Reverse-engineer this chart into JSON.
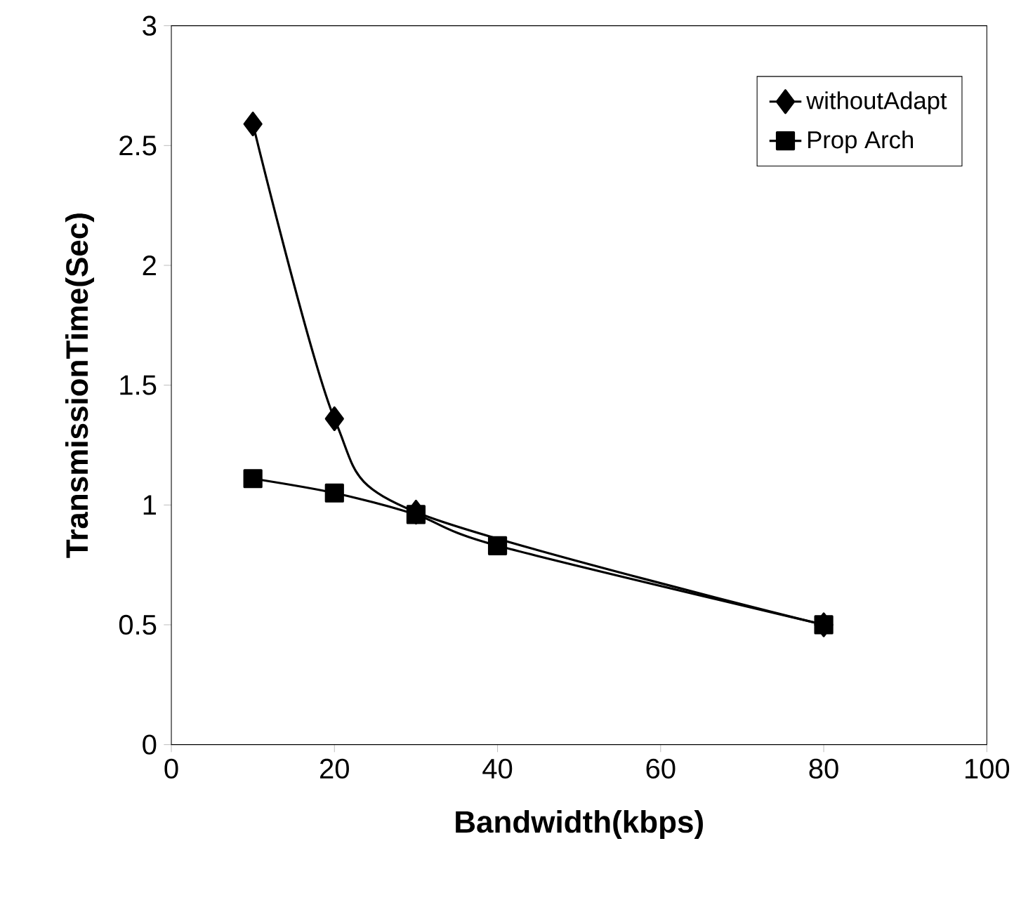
{
  "chart_data": {
    "type": "line",
    "xlabel": "Bandwidth(kbps)",
    "ylabel": "TransmissionTime(Sec)",
    "xlim": [
      0,
      100
    ],
    "xticks": [
      0,
      20,
      40,
      60,
      80,
      100
    ],
    "ylim": [
      0,
      3
    ],
    "yticks": [
      0,
      0.5,
      1,
      1.5,
      2,
      2.5,
      3
    ],
    "grid": false,
    "legend": "top right",
    "series": [
      {
        "name": "withoutAdapt",
        "color": "#000000",
        "marker": "diamond",
        "x": [
          10,
          20,
          30,
          40,
          80
        ],
        "values": [
          2.59,
          1.36,
          0.97,
          null,
          0.5
        ]
      },
      {
        "name": "Prop Arch",
        "color": "#000000",
        "marker": "square",
        "x": [
          10,
          20,
          30,
          40,
          80
        ],
        "values": [
          1.11,
          1.05,
          0.96,
          0.83,
          0.5
        ]
      }
    ]
  }
}
